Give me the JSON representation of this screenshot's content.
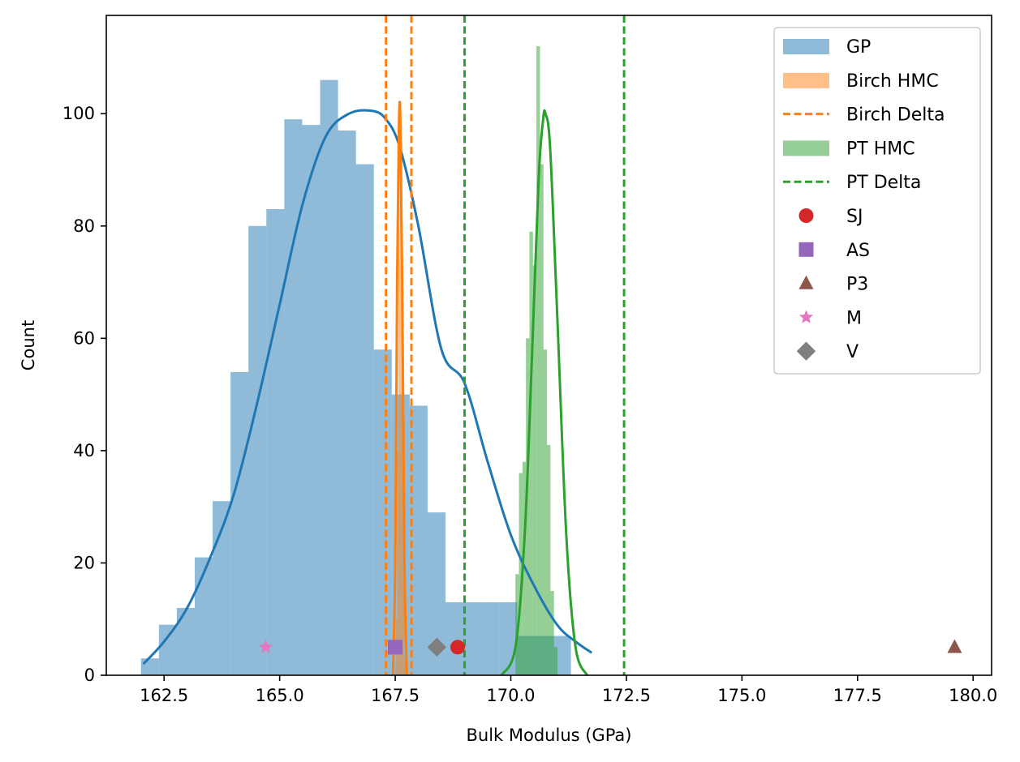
{
  "chart_data": {
    "type": "histogram",
    "xlabel": "Bulk Modulus (GPa)",
    "ylabel": "Count",
    "xlim": [
      161.25,
      180.4
    ],
    "ylim": [
      0,
      117.5
    ],
    "xticks": [
      162.5,
      165.0,
      167.5,
      170.0,
      172.5,
      175.0,
      177.5,
      180.0
    ],
    "xtick_labels": [
      "162.5",
      "165.0",
      "167.5",
      "170.0",
      "172.5",
      "175.0",
      "177.5",
      "180.0"
    ],
    "yticks": [
      0,
      20,
      40,
      60,
      80,
      100
    ],
    "ytick_labels": [
      "0",
      "20",
      "40",
      "60",
      "80",
      "100"
    ],
    "grid": false,
    "legend_position": "top-right",
    "colors": {
      "gp": "#1f77b4",
      "birch": "#ff7f0e",
      "pt": "#2ca02c",
      "sj": "#d62728",
      "as": "#9467bd",
      "p3": "#8c564b",
      "m": "#e377c2",
      "v": "#7f7f7f"
    },
    "histograms": [
      {
        "name": "GP",
        "color": "#1f77b4",
        "alpha": 0.5,
        "bin_start": 162.0,
        "bin_width": 0.3875,
        "counts": [
          3,
          9,
          12,
          21,
          31,
          54,
          80,
          83,
          99,
          98,
          106,
          97,
          91,
          58,
          50,
          48,
          29,
          13,
          13,
          13,
          13,
          7,
          7,
          7
        ]
      },
      {
        "name": "Birch HMC",
        "color": "#ff7f0e",
        "alpha": 0.5,
        "bin_start": 167.5,
        "bin_width": 0.022,
        "counts": [
          2,
          10,
          40,
          80,
          100,
          102,
          95,
          60,
          20,
          3
        ]
      },
      {
        "name": "PT HMC",
        "color": "#2ca02c",
        "alpha": 0.5,
        "bin_start": 170.1,
        "bin_width": 0.0758,
        "counts": [
          18,
          36,
          38,
          60,
          79,
          73,
          112,
          91,
          58,
          41,
          15,
          5
        ]
      }
    ],
    "kde": [
      {
        "name": "GP",
        "color": "#1f77b4",
        "x": [
          162.05,
          162.5,
          163.0,
          163.5,
          164.0,
          164.5,
          165.0,
          165.5,
          166.0,
          166.5,
          167.0,
          167.3,
          167.6,
          168.0,
          168.5,
          169.0,
          169.5,
          170.0,
          170.5,
          171.0,
          171.4,
          171.75
        ],
        "y": [
          2,
          6,
          12,
          21,
          32,
          48,
          66,
          84,
          96,
          100,
          100.5,
          99,
          94,
          80,
          58,
          52,
          38,
          25,
          16,
          9,
          6,
          4
        ]
      },
      {
        "name": "Birch HMC",
        "color": "#ff7f0e",
        "x": [
          167.45,
          167.5,
          167.54,
          167.58,
          167.61,
          167.65,
          167.7,
          167.75
        ],
        "y": [
          0,
          20,
          70,
          98,
          99,
          70,
          20,
          0
        ]
      },
      {
        "name": "PT HMC",
        "color": "#2ca02c",
        "x": [
          169.8,
          170.1,
          170.3,
          170.45,
          170.6,
          170.7,
          170.75,
          170.85,
          171.0,
          171.2,
          171.4,
          171.65
        ],
        "y": [
          0,
          5,
          25,
          55,
          88,
          99,
          100,
          94,
          65,
          25,
          5,
          0
        ]
      }
    ],
    "vlines": [
      {
        "name": "Birch Delta",
        "color": "#ff7f0e",
        "x": [
          167.3,
          167.85
        ]
      },
      {
        "name": "PT Delta",
        "color": "#2ca02c",
        "x": [
          169.0,
          172.45
        ]
      }
    ],
    "points": [
      {
        "name": "SJ",
        "marker": "circle",
        "color": "#d62728",
        "x": 168.85,
        "y": 5
      },
      {
        "name": "AS",
        "marker": "square",
        "color": "#9467bd",
        "x": 167.5,
        "y": 5
      },
      {
        "name": "P3",
        "marker": "triangle",
        "color": "#8c564b",
        "x": 179.6,
        "y": 5
      },
      {
        "name": "M",
        "marker": "star",
        "color": "#e377c2",
        "x": 164.7,
        "y": 5
      },
      {
        "name": "V",
        "marker": "diamond",
        "color": "#7f7f7f",
        "x": 168.4,
        "y": 5
      }
    ],
    "legend": [
      {
        "label": "GP",
        "kind": "patch",
        "color": "#1f77b4"
      },
      {
        "label": "Birch HMC",
        "kind": "patch",
        "color": "#ff7f0e"
      },
      {
        "label": "Birch Delta",
        "kind": "dashed",
        "color": "#ff7f0e"
      },
      {
        "label": "PT HMC",
        "kind": "patch",
        "color": "#2ca02c"
      },
      {
        "label": "PT Delta",
        "kind": "dashed",
        "color": "#2ca02c"
      },
      {
        "label": "SJ",
        "kind": "circle",
        "color": "#d62728"
      },
      {
        "label": "AS",
        "kind": "square",
        "color": "#9467bd"
      },
      {
        "label": "P3",
        "kind": "triangle",
        "color": "#8c564b"
      },
      {
        "label": "M",
        "kind": "star",
        "color": "#e377c2"
      },
      {
        "label": "V",
        "kind": "diamond",
        "color": "#7f7f7f"
      }
    ]
  }
}
